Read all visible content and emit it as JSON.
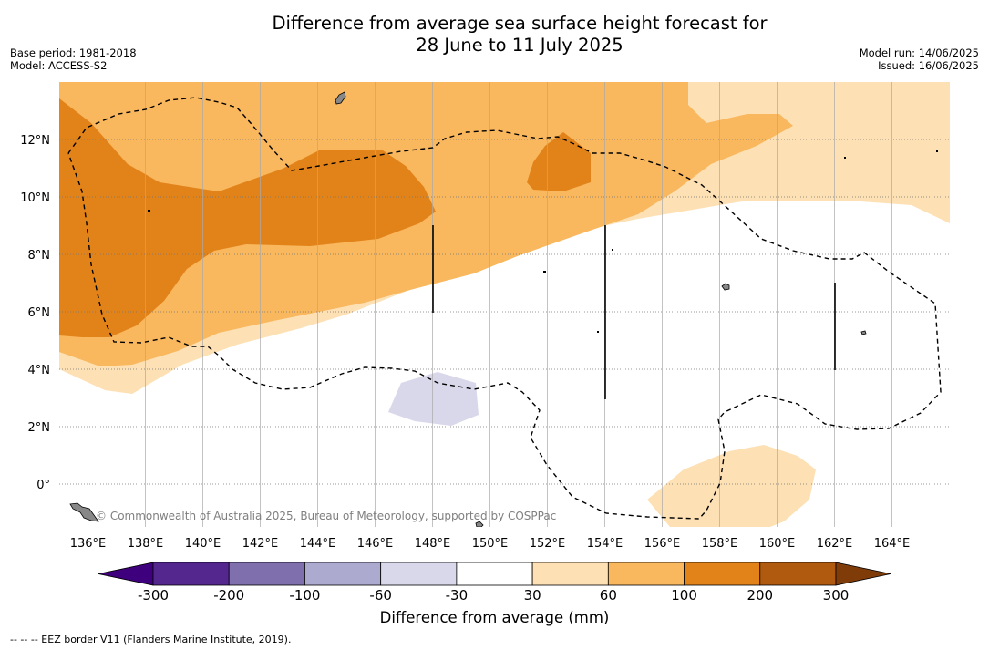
{
  "title_line1": "Difference from average sea surface height forecast for",
  "title_line2": "28 June to 11 July 2025",
  "base_period": "Base period: 1981-2018",
  "model": "Model: ACCESS-S2",
  "model_run": "Model run: 14/06/2025",
  "issued": "Issued: 16/06/2025",
  "credit": "© Commonwealth of Australia 2025, Bureau of Meteorology, supported by COSPPac",
  "x_ticks": [
    "136°E",
    "138°E",
    "140°E",
    "142°E",
    "144°E",
    "146°E",
    "148°E",
    "150°E",
    "152°E",
    "154°E",
    "156°E",
    "158°E",
    "160°E",
    "162°E",
    "164°E"
  ],
  "y_ticks": [
    "12°N",
    "10°N",
    "8°N",
    "6°N",
    "4°N",
    "2°N",
    "0°"
  ],
  "colorbar": {
    "title": "Difference from average (mm)",
    "labels": [
      "-300",
      "-200",
      "-100",
      "-60",
      "-30",
      "30",
      "60",
      "100",
      "200",
      "300"
    ],
    "colors": [
      "#54278f",
      "#7f6fad",
      "#adaad0",
      "#d8d8ea",
      "#ffffff",
      "#fde0b4",
      "#f9b75e",
      "#e2831a",
      "#b05a0f"
    ],
    "under_color": "#3f007d",
    "over_color": "#7f3b08"
  },
  "footnote": "--  --  -- EEZ border V11 (Flanders Marine Institute, 2019)."
}
